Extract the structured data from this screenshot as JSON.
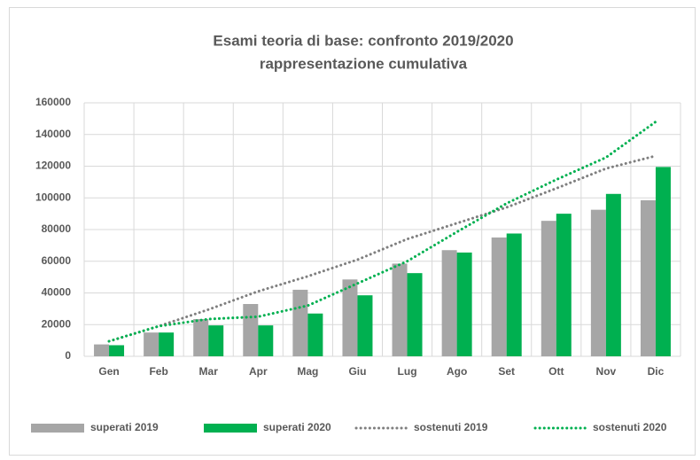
{
  "chart_data": {
    "type": "bar",
    "title": "Esami teoria di base: confronto 2019/2020",
    "subtitle": "rappresentazione cumulativa",
    "categories": [
      "Gen",
      "Feb",
      "Mar",
      "Apr",
      "Mag",
      "Giu",
      "Lug",
      "Ago",
      "Set",
      "Ott",
      "Nov",
      "Dic"
    ],
    "series": [
      {
        "name": "superati 2019",
        "color": "#a6a6a6",
        "style": "bar",
        "values": [
          7500,
          15000,
          23500,
          33000,
          42000,
          48500,
          58500,
          67000,
          75000,
          85500,
          92500,
          98500
        ]
      },
      {
        "name": "superati 2020",
        "color": "#00b050",
        "style": "bar",
        "values": [
          7000,
          15000,
          19500,
          19500,
          27000,
          38500,
          52500,
          65500,
          77500,
          90000,
          102500,
          119500
        ]
      },
      {
        "name": "sostenuti 2019",
        "color": "#7f7f7f",
        "style": "dotted",
        "values": [
          9500,
          19000,
          29500,
          41000,
          50500,
          61000,
          74000,
          84000,
          94000,
          106000,
          118500,
          126500
        ]
      },
      {
        "name": "sostenuti 2020",
        "color": "#00b050",
        "style": "dotted",
        "values": [
          9500,
          19000,
          23500,
          25000,
          32000,
          46000,
          60000,
          78500,
          96500,
          111500,
          125500,
          148000
        ]
      }
    ],
    "ylim": [
      0,
      160000
    ],
    "yticks": [
      0,
      20000,
      40000,
      60000,
      80000,
      100000,
      120000,
      140000,
      160000
    ],
    "grid": true,
    "legend": "bottom"
  }
}
